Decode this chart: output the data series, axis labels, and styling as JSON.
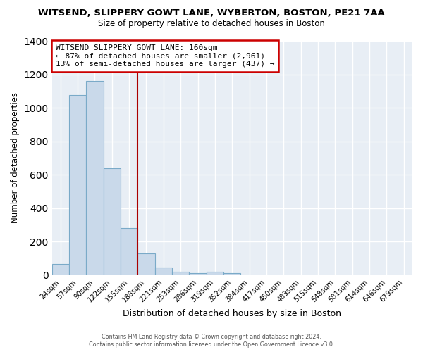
{
  "title": "WITSEND, SLIPPERY GOWT LANE, WYBERTON, BOSTON, PE21 7AA",
  "subtitle": "Size of property relative to detached houses in Boston",
  "xlabel": "Distribution of detached houses by size in Boston",
  "ylabel": "Number of detached properties",
  "bar_labels": [
    "24sqm",
    "57sqm",
    "90sqm",
    "122sqm",
    "155sqm",
    "188sqm",
    "221sqm",
    "253sqm",
    "286sqm",
    "319sqm",
    "352sqm",
    "384sqm",
    "417sqm",
    "450sqm",
    "483sqm",
    "515sqm",
    "548sqm",
    "581sqm",
    "614sqm",
    "646sqm",
    "679sqm"
  ],
  "all_bar_values": [
    65,
    1075,
    1160,
    640,
    280,
    130,
    45,
    20,
    10,
    20,
    10,
    0,
    0,
    0,
    0,
    0,
    0,
    0,
    0,
    0,
    0
  ],
  "bar_color": "#c9d9ea",
  "bar_edge_color": "#7aaac8",
  "bar_width": 1.0,
  "vline_x_index": 4.5,
  "vline_color": "#aa0000",
  "ylim": [
    0,
    1400
  ],
  "yticks": [
    0,
    200,
    400,
    600,
    800,
    1000,
    1200,
    1400
  ],
  "annotation_title": "WITSEND SLIPPERY GOWT LANE: 160sqm",
  "annotation_line1": "← 87% of detached houses are smaller (2,961)",
  "annotation_line2": "13% of semi-detached houses are larger (437) →",
  "annotation_box_color": "#ffffff",
  "annotation_box_edge": "#cc0000",
  "footer1": "Contains HM Land Registry data © Crown copyright and database right 2024.",
  "footer2": "Contains public sector information licensed under the Open Government Licence v3.0.",
  "figure_bg": "#ffffff",
  "plot_bg": "#e8eef5",
  "grid_color": "#ffffff",
  "num_bars": 21
}
